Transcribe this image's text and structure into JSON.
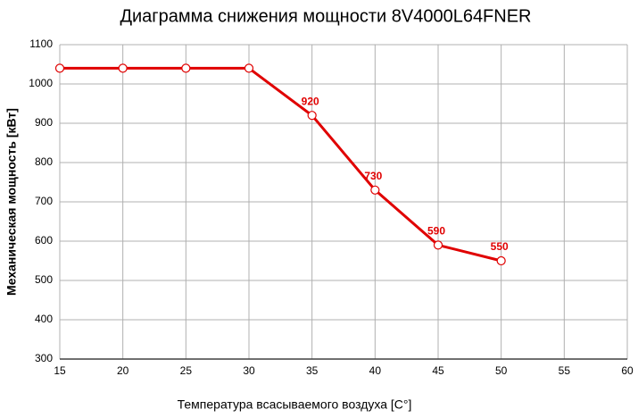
{
  "chart_data": {
    "type": "line",
    "title": "Диаграмма снижения мощности 8V4000L64FNER",
    "x_label": "Температура всасываемого воздуха [C°]",
    "y_label": "Механическая мощность [кВт]",
    "x": [
      15,
      20,
      25,
      30,
      35,
      40,
      45,
      50
    ],
    "series": [
      {
        "name": "8V4000L64FNER",
        "color": "#e00000",
        "values": [
          1040,
          1040,
          1040,
          1040,
          920,
          730,
          590,
          550
        ],
        "value_labels": [
          null,
          null,
          null,
          null,
          "920",
          "730",
          "590",
          "550"
        ]
      }
    ],
    "xlim": [
      15,
      60
    ],
    "xticks": [
      15,
      20,
      25,
      30,
      35,
      40,
      45,
      50,
      55,
      60
    ],
    "ylim": [
      300,
      1100
    ],
    "yticks": [
      300,
      400,
      500,
      600,
      700,
      800,
      900,
      1000,
      1100
    ],
    "grid": true,
    "legend": false
  }
}
